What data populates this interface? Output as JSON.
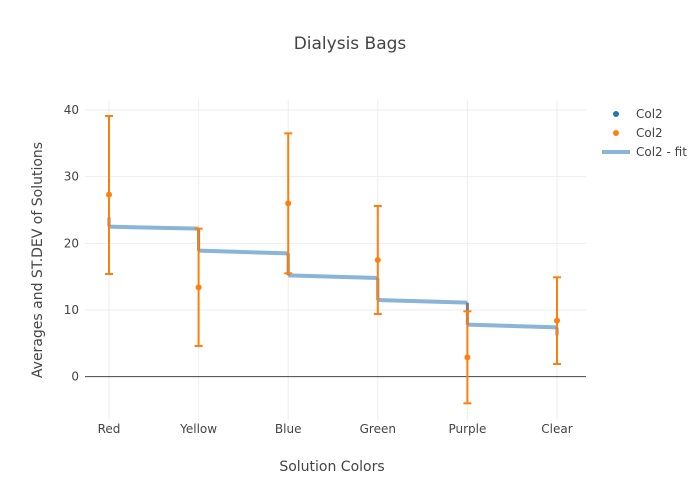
{
  "chart_data": {
    "type": "scatter",
    "title": "Dialysis Bags",
    "xlabel": "Solution Colors",
    "ylabel": "Averages and ST.DEV of Solutions",
    "categories": [
      "Red",
      "Yellow",
      "Blue",
      "Green",
      "Purple",
      "Clear"
    ],
    "ylim": [
      -6.5,
      41.5
    ],
    "yticks": [
      0,
      10,
      20,
      30,
      40
    ],
    "grid": true,
    "legend_position": "top-right",
    "series": [
      {
        "name": "Col2",
        "kind": "markers",
        "color": "#1f77b4",
        "values": [
          null,
          null,
          null,
          null,
          null,
          null
        ]
      },
      {
        "name": "Col2",
        "kind": "markers-with-error-bars",
        "color": "#ff7f0e",
        "values": [
          27.3,
          13.4,
          26.0,
          17.5,
          2.9,
          8.4
        ],
        "error_minus": [
          11.9,
          8.8,
          10.5,
          8.1,
          6.9,
          6.5
        ],
        "error_plus": [
          11.8,
          8.8,
          10.5,
          8.1,
          6.9,
          6.5
        ]
      },
      {
        "name": "Col2 - fit",
        "kind": "step-fit",
        "color": "#8bb4d9",
        "segments": [
          {
            "from": 0.0,
            "to": 1.0,
            "start": 22.5,
            "end": 22.2
          },
          {
            "from": 1.0,
            "to": 2.0,
            "start": 18.9,
            "end": 18.5
          },
          {
            "from": 2.0,
            "to": 3.0,
            "start": 15.2,
            "end": 14.8
          },
          {
            "from": 3.0,
            "to": 4.0,
            "start": 11.5,
            "end": 11.1
          },
          {
            "from": 4.0,
            "to": 5.0,
            "start": 7.8,
            "end": 7.4
          }
        ],
        "step_bars": [
          {
            "at": 0.0,
            "low": 22.5,
            "high": 23.9
          },
          {
            "at": 1.0,
            "low": 18.9,
            "high": 22.2
          },
          {
            "at": 2.0,
            "low": 15.2,
            "high": 18.5
          },
          {
            "at": 3.0,
            "low": 11.5,
            "high": 14.8
          },
          {
            "at": 4.0,
            "low": 7.8,
            "high": 11.1
          },
          {
            "at": 5.0,
            "low": 6.2,
            "high": 7.4
          }
        ]
      }
    ]
  }
}
